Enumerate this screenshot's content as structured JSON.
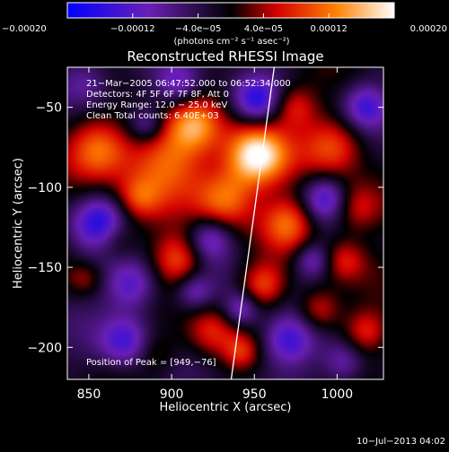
{
  "chart_data": {
    "type": "heatmap",
    "title": "Reconstructed RHESSI Image",
    "xlabel": "Heliocentric X (arcsec)",
    "ylabel": "Heliocentric Y (arcsec)",
    "xlim": [
      837,
      1028
    ],
    "ylim": [
      -220,
      -25
    ],
    "x_ticks": [
      850,
      900,
      950,
      1000
    ],
    "y_ticks": [
      -50,
      -100,
      -150,
      -200
    ],
    "x_tick_labels": [
      "850",
      "900",
      "950",
      "1000"
    ],
    "y_tick_labels": [
      "−50",
      "−100",
      "−150",
      "−200"
    ],
    "colorbar": {
      "range": [
        -0.0002,
        0.0002
      ],
      "ticks": [
        -0.0002,
        -0.00012,
        -4e-05,
        4e-05,
        0.00012,
        0.0002
      ],
      "tick_labels": [
        "−0.00020",
        "−0.00012",
        "−4.0e−05",
        "4.0e−05",
        "0.00012",
        "0.00020"
      ],
      "unit_label": "(photons cm⁻² s⁻¹ asec⁻²)",
      "colors": [
        "#0000ff",
        "#6a1fb5",
        "#000000",
        "#d40000",
        "#ff8000",
        "#ffffff"
      ]
    },
    "annotations": {
      "time": "21−Mar−2005 06:47:52.000 to 06:52:34.000",
      "detectors": "Detectors: 4F 5F 6F 7F 8F, Att 0",
      "energy": "Energy Range: 12.0 − 25.0 keV",
      "clean": "Clean    Total counts: 6.40E+03",
      "peak": "Position of Peak = [949,−76]"
    },
    "peak": [
      949,
      -76
    ],
    "limb_arc": [
      [
        962,
        -25
      ],
      [
        936,
        -220
      ]
    ],
    "footer": "10−Jul−2013 04:02"
  }
}
